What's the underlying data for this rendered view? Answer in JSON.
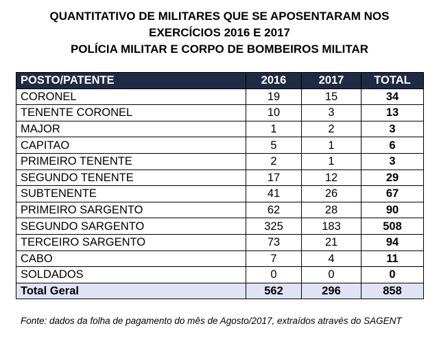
{
  "title": {
    "line1": "QUANTITATIVO DE MILITARES QUE SE APOSENTARAM NOS",
    "line2": "EXERCÍCIOS 2016 E 2017",
    "line3": "POLÍCIA MILITAR E CORPO DE BOMBEIROS MILITAR"
  },
  "table": {
    "headers": [
      "POSTO/PATENTE",
      "2016",
      "2017",
      "TOTAL"
    ],
    "rows": [
      {
        "rank": "CORONEL",
        "y2016": "19",
        "y2017": "15",
        "total": "34"
      },
      {
        "rank": "TENENTE CORONEL",
        "y2016": "10",
        "y2017": "3",
        "total": "13"
      },
      {
        "rank": "MAJOR",
        "y2016": "1",
        "y2017": "2",
        "total": "3"
      },
      {
        "rank": "CAPITAO",
        "y2016": "5",
        "y2017": "1",
        "total": "6"
      },
      {
        "rank": "PRIMEIRO TENENTE",
        "y2016": "2",
        "y2017": "1",
        "total": "3"
      },
      {
        "rank": "SEGUNDO TENENTE",
        "y2016": "17",
        "y2017": "12",
        "total": "29"
      },
      {
        "rank": "SUBTENENTE",
        "y2016": "41",
        "y2017": "26",
        "total": "67"
      },
      {
        "rank": "PRIMEIRO SARGENTO",
        "y2016": "62",
        "y2017": "28",
        "total": "90"
      },
      {
        "rank": "SEGUNDO SARGENTO",
        "y2016": "325",
        "y2017": "183",
        "total": "508"
      },
      {
        "rank": "TERCEIRO SARGENTO",
        "y2016": "73",
        "y2017": "21",
        "total": "94"
      },
      {
        "rank": "CABO",
        "y2016": "7",
        "y2017": "4",
        "total": "11"
      },
      {
        "rank": "SOLDADOS",
        "y2016": "0",
        "y2017": "0",
        "total": "0"
      }
    ],
    "total_row": {
      "label": "Total Geral",
      "y2016": "562",
      "y2017": "296",
      "total": "858"
    }
  },
  "source": "Fonte: dados da folha de pagamento do mês de Agosto/2017, extraídos através do SAGENT",
  "colors": {
    "header_bg": "#1f2a44",
    "header_text": "#ffffff",
    "total_row_bg": "#dfe4f4"
  }
}
